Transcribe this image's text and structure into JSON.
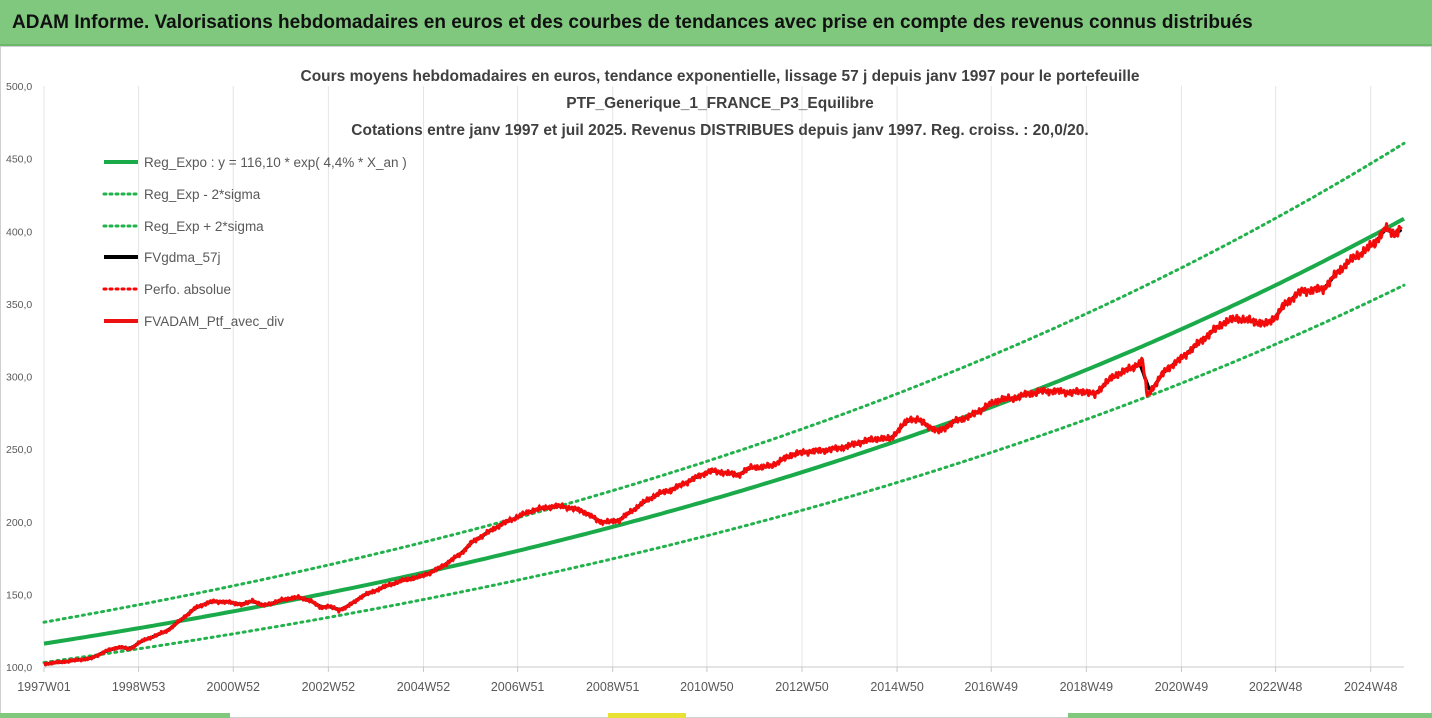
{
  "header": {
    "title": "ADAM Informe. Valorisations hebdomadaires en euros et des courbes de tendances avec prise en compte des revenus connus distribués"
  },
  "colors": {
    "banner": "#7fc87e",
    "reg_expo": "#1aaa4a",
    "reg_band": "#22b24c",
    "fvgdma": "#000000",
    "perfo": "#ff0000",
    "fvadam": "#ee1111",
    "axis_text": "#595959",
    "title_text": "#404040"
  },
  "chart_data": {
    "type": "line",
    "title_lines": [
      "Cours moyens hebdomadaires  en euros, tendance exponentielle, lissage 57 j depuis janv 1997 pour le portefeuille",
      "PTF_Generique_1_FRANCE_P3_Equilibre",
      "Cotations  entre janv 1997 et juil 2025. Revenus DISTRIBUES depuis janv 1997. Reg. croiss. : 20,0/20."
    ],
    "y_ticks": [
      "100,0",
      "150,0",
      "200,0",
      "250,0",
      "300,0",
      "350,0",
      "400,0",
      "450,0",
      "500,0"
    ],
    "ylim": [
      100,
      500
    ],
    "x_ticks": [
      {
        "label": "1997W01",
        "t": 1997.0
      },
      {
        "label": "1998W53",
        "t": 1998.99
      },
      {
        "label": "2000W52",
        "t": 2000.98
      },
      {
        "label": "2002W52",
        "t": 2002.98
      },
      {
        "label": "2004W52",
        "t": 2004.98
      },
      {
        "label": "2006W51",
        "t": 2006.96
      },
      {
        "label": "2008W51",
        "t": 2008.96
      },
      {
        "label": "2010W50",
        "t": 2010.94
      },
      {
        "label": "2012W50",
        "t": 2012.94
      },
      {
        "label": "2014W50",
        "t": 2014.94
      },
      {
        "label": "2016W49",
        "t": 2016.92
      },
      {
        "label": "2018W49",
        "t": 2018.92
      },
      {
        "label": "2020W49",
        "t": 2020.92
      },
      {
        "label": "2022W48",
        "t": 2022.9
      },
      {
        "label": "2024W48",
        "t": 2024.9
      }
    ],
    "xlim": [
      1997.0,
      2025.6
    ],
    "grid": "vertical",
    "legend_position": "top-left",
    "legend": [
      "Reg_Expo : y = 116,10 * exp( 4,4% *  X_an )",
      "Reg_Exp - 2*sigma",
      "Reg_Exp + 2*sigma",
      "FVgdma_57j",
      "Perfo. absolue",
      "FVADAM_Ptf_avec_div"
    ],
    "trend": {
      "a": 116.1,
      "rate": 0.044,
      "band_low_factor": 0.888,
      "band_high_factor": 1.127
    },
    "series": [
      {
        "name": "FVADAM_Ptf_avec_div",
        "points": [
          [
            1997.0,
            102
          ],
          [
            1997.5,
            104
          ],
          [
            1998.0,
            106
          ],
          [
            1998.3,
            111
          ],
          [
            1998.6,
            114
          ],
          [
            1998.8,
            112
          ],
          [
            1999.0,
            117
          ],
          [
            1999.3,
            121
          ],
          [
            1999.6,
            125
          ],
          [
            1999.9,
            133
          ],
          [
            2000.2,
            141
          ],
          [
            2000.5,
            145
          ],
          [
            2000.8,
            145
          ],
          [
            2001.0,
            144
          ],
          [
            2001.2,
            143
          ],
          [
            2001.4,
            146
          ],
          [
            2001.6,
            142
          ],
          [
            2001.8,
            144
          ],
          [
            2002.0,
            146
          ],
          [
            2002.3,
            148
          ],
          [
            2002.6,
            146
          ],
          [
            2002.8,
            141
          ],
          [
            2003.0,
            142
          ],
          [
            2003.2,
            139
          ],
          [
            2003.4,
            142
          ],
          [
            2003.7,
            149
          ],
          [
            2004.0,
            153
          ],
          [
            2004.3,
            157
          ],
          [
            2004.6,
            160
          ],
          [
            2004.9,
            162
          ],
          [
            2005.2,
            166
          ],
          [
            2005.5,
            172
          ],
          [
            2005.8,
            179
          ],
          [
            2006.0,
            186
          ],
          [
            2006.2,
            190
          ],
          [
            2006.5,
            196
          ],
          [
            2006.8,
            201
          ],
          [
            2007.0,
            204
          ],
          [
            2007.3,
            208
          ],
          [
            2007.6,
            210
          ],
          [
            2007.9,
            211
          ],
          [
            2008.1,
            209
          ],
          [
            2008.3,
            208
          ],
          [
            2008.5,
            204
          ],
          [
            2008.7,
            200
          ],
          [
            2008.9,
            200
          ],
          [
            2009.1,
            201
          ],
          [
            2009.3,
            206
          ],
          [
            2009.6,
            213
          ],
          [
            2009.9,
            219
          ],
          [
            2010.2,
            222
          ],
          [
            2010.5,
            227
          ],
          [
            2010.8,
            232
          ],
          [
            2011.0,
            235
          ],
          [
            2011.3,
            234
          ],
          [
            2011.6,
            232
          ],
          [
            2011.9,
            238
          ],
          [
            2012.1,
            237
          ],
          [
            2012.4,
            240
          ],
          [
            2012.7,
            246
          ],
          [
            2013.0,
            248
          ],
          [
            2013.3,
            249
          ],
          [
            2013.6,
            250
          ],
          [
            2013.9,
            252
          ],
          [
            2014.2,
            255
          ],
          [
            2014.5,
            257
          ],
          [
            2014.8,
            257
          ],
          [
            2015.0,
            264
          ],
          [
            2015.2,
            271
          ],
          [
            2015.4,
            270
          ],
          [
            2015.6,
            266
          ],
          [
            2015.8,
            262
          ],
          [
            2016.0,
            266
          ],
          [
            2016.2,
            270
          ],
          [
            2016.5,
            273
          ],
          [
            2016.8,
            279
          ],
          [
            2017.1,
            284
          ],
          [
            2017.4,
            285
          ],
          [
            2017.7,
            288
          ],
          [
            2018.0,
            290
          ],
          [
            2018.3,
            290
          ],
          [
            2018.6,
            289
          ],
          [
            2018.9,
            290
          ],
          [
            2019.1,
            287
          ],
          [
            2019.3,
            295
          ],
          [
            2019.6,
            302
          ],
          [
            2019.9,
            306
          ],
          [
            2020.1,
            311
          ],
          [
            2020.2,
            287
          ],
          [
            2020.4,
            296
          ],
          [
            2020.6,
            305
          ],
          [
            2020.9,
            312
          ],
          [
            2021.2,
            321
          ],
          [
            2021.5,
            329
          ],
          [
            2021.8,
            337
          ],
          [
            2022.1,
            340
          ],
          [
            2022.4,
            338
          ],
          [
            2022.7,
            336
          ],
          [
            2022.9,
            341
          ],
          [
            2023.1,
            350
          ],
          [
            2023.4,
            358
          ],
          [
            2023.7,
            360
          ],
          [
            2023.9,
            360
          ],
          [
            2024.1,
            368
          ],
          [
            2024.4,
            378
          ],
          [
            2024.7,
            385
          ],
          [
            2025.0,
            392
          ],
          [
            2025.2,
            402
          ],
          [
            2025.4,
            398
          ],
          [
            2025.55,
            403
          ]
        ]
      },
      {
        "name": "FVgdma_57j"
      },
      {
        "name": "Perfo. absolue"
      }
    ]
  }
}
